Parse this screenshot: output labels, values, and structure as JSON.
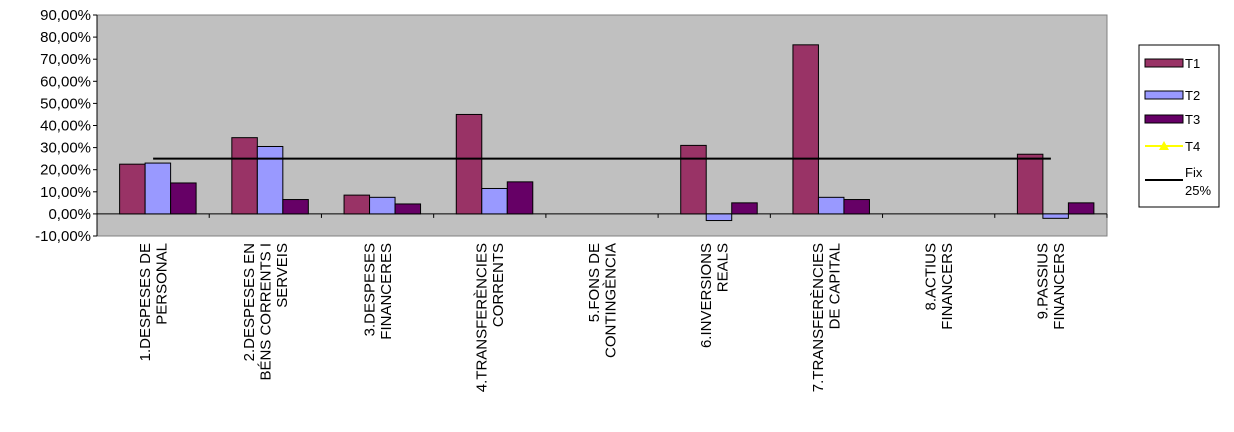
{
  "chart_data": {
    "type": "bar",
    "title": "",
    "xlabel": "",
    "ylabel": "",
    "ylim": [
      -10,
      90
    ],
    "y_ticks": [
      "90,00%",
      "80,00%",
      "70,00%",
      "60,00%",
      "50,00%",
      "40,00%",
      "30,00%",
      "20,00%",
      "10,00%",
      "0,00%",
      "-10,00%"
    ],
    "grid": false,
    "plot_background": "#c0c0c0",
    "legend_position": "right",
    "categories": [
      [
        "1.DESPESES DE",
        "PERSONAL"
      ],
      [
        "2.DESPESES EN",
        "BÉNS CORRENTS I",
        "SERVEIS"
      ],
      [
        "3.DESPESES",
        "FINANCERES"
      ],
      [
        "4.TRANSFERÈNCIES",
        "CORRENTS"
      ],
      [
        "5.FONS DE",
        "CONTINGÈNCIA"
      ],
      [
        "6.INVERSIONS",
        "REALS"
      ],
      [
        "7.TRANSFERÈNCIES",
        "DE CAPITAL"
      ],
      [
        "8.ACTIUS",
        "FINANCERS"
      ],
      [
        "9.PASSIUS",
        "FINANCERS"
      ]
    ],
    "series": [
      {
        "name": "T1",
        "type": "bar",
        "color": "#993366",
        "values": [
          22.5,
          34.5,
          8.5,
          45.0,
          null,
          31.0,
          76.5,
          null,
          27.0
        ]
      },
      {
        "name": "T2",
        "type": "bar",
        "color": "#9999ff",
        "values": [
          23.0,
          30.5,
          7.5,
          11.5,
          null,
          -3.0,
          7.5,
          null,
          -2.0
        ]
      },
      {
        "name": "T3",
        "type": "bar",
        "color": "#660066",
        "values": [
          14.0,
          6.5,
          4.5,
          14.5,
          null,
          5.0,
          6.5,
          null,
          5.0
        ]
      },
      {
        "name": "T4",
        "type": "line",
        "color": "#ffff00",
        "values": [
          null,
          null,
          null,
          null,
          null,
          null,
          null,
          null,
          null
        ]
      },
      {
        "name": [
          "Fix",
          "25%"
        ],
        "type": "line",
        "color": "#000000",
        "values": [
          25,
          25,
          25,
          25,
          25,
          25,
          25,
          25,
          25
        ]
      }
    ]
  }
}
